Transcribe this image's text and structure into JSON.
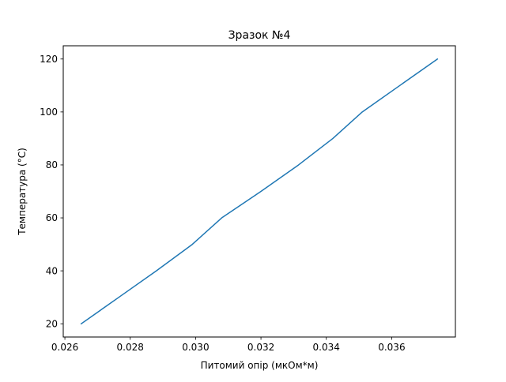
{
  "chart_data": {
    "type": "line",
    "title": "Зразок №4",
    "xlabel": "Питомий опір (мкОм*м)",
    "ylabel": "Температура (°C)",
    "xlim": [
      0.02595,
      0.03795
    ],
    "ylim": [
      15,
      125
    ],
    "x_ticks": [
      0.026,
      0.028,
      0.03,
      0.032,
      0.034,
      0.036
    ],
    "x_tick_labels": [
      "0.026",
      "0.028",
      "0.030",
      "0.032",
      "0.034",
      "0.036"
    ],
    "y_ticks": [
      20,
      40,
      60,
      80,
      100,
      120
    ],
    "y_tick_labels": [
      "20",
      "40",
      "60",
      "80",
      "100",
      "120"
    ],
    "grid": false,
    "series": [
      {
        "color": "#1f77b4",
        "x": [
          0.0265,
          0.02765,
          0.0288,
          0.0299,
          0.0308,
          0.032,
          0.03315,
          0.0342,
          0.0351,
          0.03625,
          0.0374
        ],
        "y": [
          20,
          30,
          40,
          50,
          60,
          70,
          80,
          90,
          100,
          110,
          120
        ]
      }
    ]
  }
}
